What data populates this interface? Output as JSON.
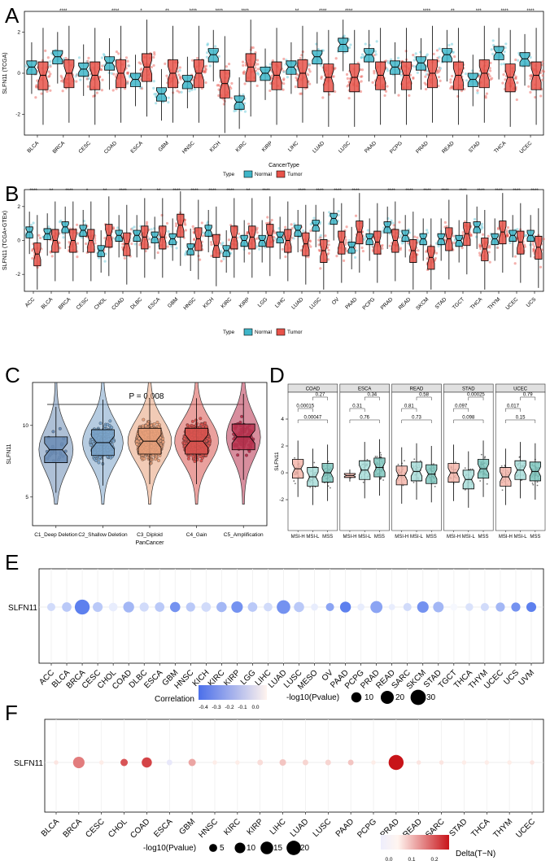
{
  "panels": {
    "A": "A",
    "B": "B",
    "C": "C",
    "D": "D",
    "E": "E",
    "F": "F"
  },
  "colors": {
    "normal": "#3fb6c9",
    "tumor": "#e8534a",
    "text_red": "#c0392b"
  },
  "chart_data": [
    {
      "id": "A",
      "type": "boxplot",
      "ylabel": "SLFN11 (TCGA)",
      "xlabel": "CancerType",
      "ylim": [
        -3,
        3
      ],
      "yticks": [
        "-2",
        "0",
        "2"
      ],
      "legend": {
        "title": "Type",
        "items": [
          "Normal",
          "Tumor"
        ],
        "position": "bottom"
      },
      "categories": [
        "BLCA",
        "BRCA",
        "CESC",
        "COAD",
        "ESCA",
        "GBM",
        "HNSC",
        "KICH",
        "KIRC",
        "KIRP",
        "LIHC",
        "LUAD",
        "LUSC",
        "PAAD",
        "PCPG",
        "PRAD",
        "READ",
        "STAD",
        "THCA",
        "UCEC"
      ],
      "significance": [
        "",
        "****",
        "",
        "****",
        "*",
        "**",
        "****",
        "****",
        "****",
        "",
        "**",
        "****",
        "****",
        "",
        "",
        "****",
        "**",
        "***",
        "****",
        "****"
      ],
      "normal_median": [
        0.3,
        0.8,
        0.2,
        0.5,
        -0.3,
        -1.0,
        -0.4,
        0.9,
        -1.4,
        0.0,
        0.3,
        0.8,
        1.4,
        0.9,
        0.3,
        0.5,
        0.9,
        -0.3,
        1.0,
        0.7
      ],
      "tumor_median": [
        -0.1,
        0.0,
        -0.1,
        0.0,
        0.3,
        0.0,
        0.0,
        -0.5,
        0.3,
        -0.1,
        0.0,
        -0.2,
        -0.2,
        -0.1,
        -0.1,
        0.0,
        -0.1,
        0.0,
        -0.2,
        -0.1
      ]
    },
    {
      "id": "B",
      "type": "boxplot",
      "ylabel": "SLFN11 (TCGA+GTEx)",
      "ylim": [
        -3,
        3
      ],
      "yticks": [
        "-2",
        "0",
        "2"
      ],
      "legend": {
        "title": "Type",
        "items": [
          "Normal",
          "Tumor"
        ],
        "position": "bottom"
      },
      "categories": [
        "ACC",
        "BLCA",
        "BRCA",
        "CESC",
        "CHOL",
        "COAD",
        "DLBC",
        "ESCA",
        "GBM",
        "HNSC",
        "KICH",
        "KIRC",
        "KIRP",
        "LGG",
        "LIHC",
        "LUAD",
        "LUSC",
        "OV",
        "PAAD",
        "PCPG",
        "PRAD",
        "READ",
        "SKCM",
        "STAD",
        "TGCT",
        "THCA",
        "THYM",
        "UCEC",
        "UCS"
      ],
      "significance": [
        "****",
        "**",
        "****",
        "*",
        "**",
        "****",
        "*",
        "**",
        "****",
        "****",
        "****",
        "****",
        "**",
        "****",
        "",
        "****",
        "****",
        "****",
        "****",
        "",
        "****",
        "****",
        "****",
        "****",
        "****",
        "****",
        "****",
        "****",
        "****"
      ],
      "normal_median": [
        0.5,
        0.4,
        0.8,
        0.6,
        -0.6,
        0.3,
        0.3,
        0.2,
        0.1,
        -0.5,
        0.6,
        -0.6,
        0.0,
        0.0,
        0.2,
        0.6,
        0.9,
        1.3,
        -0.4,
        0.1,
        0.8,
        0.3,
        0.1,
        0.1,
        0.0,
        0.8,
        0.1,
        0.3,
        0.3
      ],
      "tumor_median": [
        -0.8,
        0.0,
        0.0,
        0.0,
        0.3,
        -0.2,
        0.2,
        0.2,
        0.9,
        0.1,
        -0.3,
        0.2,
        0.2,
        0.3,
        0.0,
        -0.2,
        -0.6,
        -0.1,
        0.5,
        -0.1,
        0.0,
        -0.6,
        -1.0,
        0.1,
        0.4,
        -0.5,
        0.5,
        -0.1,
        -0.4
      ]
    },
    {
      "id": "C",
      "type": "violin",
      "title": "P = 0.008",
      "ylabel": "SLFN11",
      "xlabel": "PanCancer",
      "yticks": [
        "5",
        "10"
      ],
      "categories": [
        "C1_Deep Deletion",
        "C2_Shallow Deletion",
        "C3_Diploid",
        "C4_Gain",
        "C5_Amplification"
      ],
      "colors": [
        "#6b8cb5",
        "#7aa3c9",
        "#e8a07a",
        "#d9534f",
        "#b8324f"
      ],
      "medians": [
        8.3,
        8.8,
        8.9,
        8.9,
        9.2
      ]
    },
    {
      "id": "D",
      "type": "boxplot",
      "ylabel": "SLFN11",
      "yticks": [
        "-2",
        "0",
        "2",
        "4"
      ],
      "groups": [
        "MSI-H",
        "MSI-L",
        "MSS"
      ],
      "facets": [
        {
          "name": "COAD",
          "p": [
            "0.27",
            "0.00015",
            "0.00047"
          ],
          "medians": [
            0.3,
            -0.3,
            0.0
          ]
        },
        {
          "name": "ESCA",
          "p": [
            "0.34",
            "0.31",
            "0.76"
          ],
          "medians": [
            -0.2,
            0.2,
            0.4
          ]
        },
        {
          "name": "READ",
          "p": [
            "0.58",
            "0.81",
            "0.73"
          ],
          "medians": [
            -0.2,
            0.1,
            -0.1
          ]
        },
        {
          "name": "STAD",
          "p": [
            "0.00025",
            "0.097",
            "0.098"
          ],
          "medians": [
            0.0,
            -0.5,
            0.3
          ]
        },
        {
          "name": "UCEC",
          "p": [
            "0.79",
            "0.017",
            "0.15"
          ],
          "medians": [
            -0.3,
            0.2,
            0.1
          ]
        }
      ]
    },
    {
      "id": "E",
      "type": "bubble",
      "row_label": "SLFN11",
      "categories": [
        "ACC",
        "BLCA",
        "BRCA",
        "CESC",
        "CHOL",
        "COAD",
        "DLBC",
        "ESCA",
        "GBM",
        "HNSC",
        "KICH",
        "KIRC",
        "KIRP",
        "LGG",
        "LIHC",
        "LUAD",
        "LUSC",
        "MESO",
        "OV",
        "PAAD",
        "PCPG",
        "PRAD",
        "READ",
        "SARC",
        "SKCM",
        "STAD",
        "TGCT",
        "THCA",
        "THYM",
        "UCEC",
        "UCS",
        "UVM"
      ],
      "neglog10p": [
        5,
        8,
        28,
        9,
        6,
        12,
        7,
        8,
        10,
        7,
        8,
        10,
        14,
        8,
        6,
        22,
        10,
        3,
        5,
        12,
        3,
        16,
        2,
        5,
        14,
        11,
        3,
        4,
        5,
        7,
        7,
        9
      ],
      "correlation": [
        -0.1,
        -0.15,
        -0.35,
        -0.15,
        -0.05,
        -0.2,
        -0.1,
        -0.15,
        -0.3,
        -0.15,
        -0.1,
        -0.2,
        -0.3,
        -0.15,
        -0.1,
        -0.3,
        -0.15,
        -0.05,
        -0.25,
        -0.35,
        -0.05,
        -0.25,
        -0.05,
        -0.1,
        -0.3,
        -0.2,
        -0.02,
        -0.08,
        -0.1,
        -0.2,
        -0.3,
        -0.35
      ],
      "legend_correlation": {
        "title": "Correlation",
        "ticks": [
          "-0.4",
          "-0.3",
          "-0.2",
          "-0.1",
          "0.0"
        ]
      },
      "legend_size": {
        "title": "-log10(Pvalue)",
        "ticks": [
          "10",
          "20",
          "30"
        ]
      }
    },
    {
      "id": "F",
      "type": "bubble",
      "row_label": "SLFN11",
      "categories": [
        "BLCA",
        "BRCA",
        "CESC",
        "CHOL",
        "COAD",
        "ESCA",
        "GBM",
        "HNSC",
        "KIRC",
        "KIRP",
        "LIHC",
        "LUAD",
        "LUSC",
        "PAAD",
        "PCPG",
        "PRAD",
        "READ",
        "SARC",
        "STAD",
        "THCA",
        "THYM",
        "UCEC"
      ],
      "neglog10p": [
        1,
        12,
        1,
        4,
        9,
        2,
        4,
        1,
        1,
        2,
        3,
        2,
        2,
        2,
        1,
        22,
        1,
        1,
        1,
        1,
        1,
        1
      ],
      "delta": [
        0.02,
        0.15,
        0.01,
        0.2,
        0.22,
        -0.02,
        0.1,
        0.01,
        0.01,
        0.03,
        0.06,
        0.04,
        0.04,
        0.06,
        0.01,
        0.28,
        0.02,
        0.02,
        0.01,
        0.01,
        0.01,
        0.02
      ],
      "legend_size": {
        "title": "-log10(Pvalue)",
        "ticks": [
          "5",
          "10",
          "15",
          "20"
        ]
      },
      "legend_delta": {
        "title": "Delta(T−N)",
        "ticks": [
          "0.0",
          "0.1",
          "0.2"
        ]
      }
    }
  ]
}
